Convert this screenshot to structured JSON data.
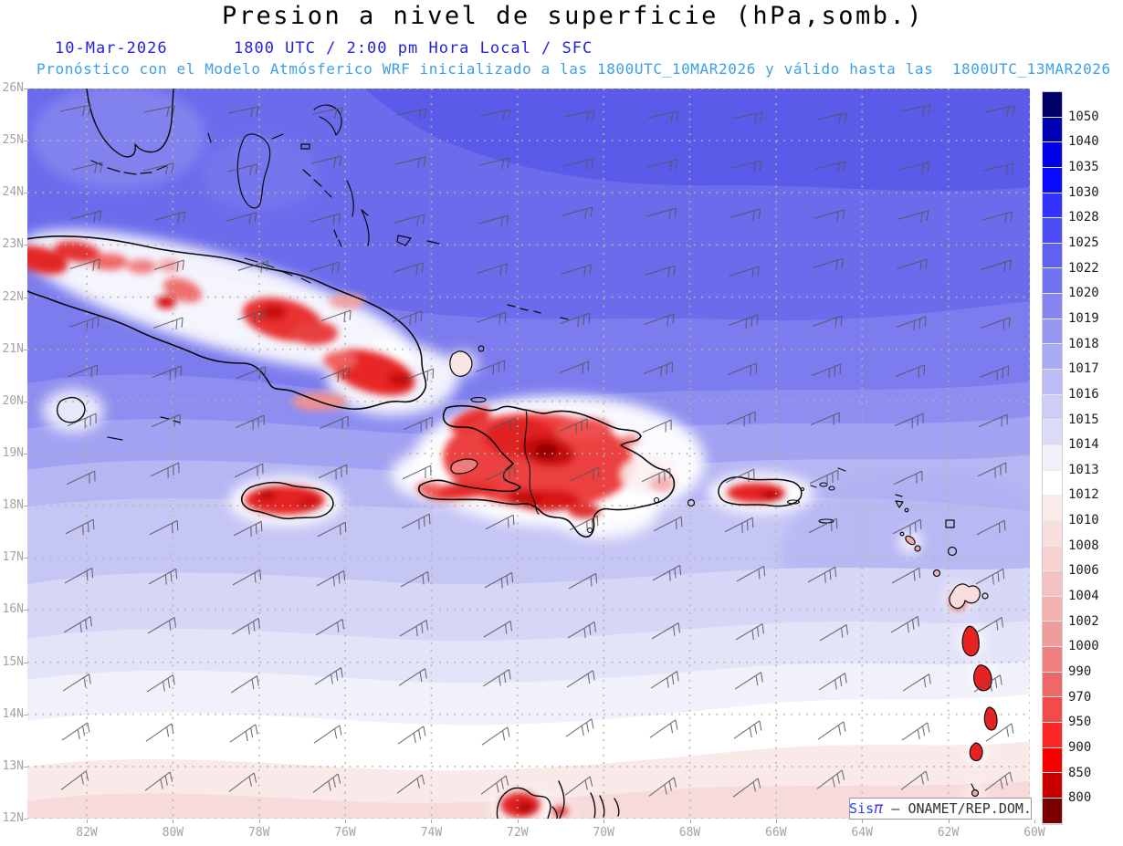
{
  "header": {
    "title": "Presion a nivel de superficie (hPa,somb.)",
    "date": "10-Mar-2026",
    "time_line": "1800 UTC / 2:00 pm Hora Local / SFC",
    "forecast_line": "Pronóstico con el Modelo Atmósferico WRF inicializado a las 1800UTC_10MAR2026 y válido hasta las  1800UTC_13MAR2026"
  },
  "watermark": {
    "prefix": "Sis",
    "pi": "π",
    "suffix": " – ONAMET/REP.DOM."
  },
  "chart_data": {
    "type": "heatmap",
    "title": "Presion a nivel de superficie (hPa,somb.)",
    "valid_time": "1800 UTC / 2:00 pm Hora Local / SFC",
    "model": "WRF",
    "init": "1800UTC_10MAR2026",
    "valid_until": "1800UTC_13MAR2026",
    "xlabel_ticks": [
      "82W",
      "80W",
      "78W",
      "76W",
      "74W",
      "72W",
      "70W",
      "68W",
      "66W",
      "64W",
      "62W",
      "60W"
    ],
    "ylabel_ticks": [
      "26N",
      "25N",
      "24N",
      "23N",
      "22N",
      "21N",
      "20N",
      "19N",
      "18N",
      "17N",
      "16N",
      "15N",
      "14N",
      "13N",
      "12N"
    ],
    "xlim": [
      "83.4W",
      "60W"
    ],
    "ylim": [
      "12N",
      "26N"
    ],
    "grid": true,
    "legend_position": "right",
    "colorbar_unit": "hPa",
    "colorbar_levels": [
      "1050",
      "1040",
      "1035",
      "1030",
      "1028",
      "1025",
      "1022",
      "1020",
      "1019",
      "1018",
      "1017",
      "1016",
      "1015",
      "1014",
      "1013",
      "1012",
      "1010",
      "1008",
      "1006",
      "1004",
      "1002",
      "1000",
      "990",
      "970",
      "950",
      "900",
      "850",
      "800"
    ],
    "colorbar_colors": [
      "#000066",
      "#0000B4",
      "#0000E6",
      "#0A0AFF",
      "#3333FF",
      "#4D4DF5",
      "#6161F0",
      "#7373EF",
      "#8585F0",
      "#9797F2",
      "#A9A9F4",
      "#BBBBF6",
      "#CDCDF8",
      "#DBDBF8",
      "#F1F1FC",
      "#FFFFFF",
      "#FBEAEA",
      "#F9DEDE",
      "#F7D0D0",
      "#F5C2C2",
      "#F2B0B0",
      "#EF9C9C",
      "#EE8282",
      "#EF6868",
      "#F34A4A",
      "#FB2626",
      "#F60000",
      "#C80000",
      "#7A0000"
    ],
    "field_summary": "Surface pressure ~1020-1025 hPa (blue) over the Atlantic north of the Greater Antilles, decreasing southward to ~1012-1014 hPa (white/pale pink) near 12N; terrain-reduced low values (red, <1000 hPa) over Cuba, Jamaica, Hispaniola, Puerto Rico, the Lesser Antilles and northern South America; easterly trade-wind barbs across the domain"
  },
  "map_style": {
    "axis_label_color": "#A3A3A3",
    "grid_dot_color": "#B5B5A2",
    "wind_barb_color": "#55555E",
    "coastline_color": "#0A0A0A",
    "date_color": "#2323DC",
    "forecast_color": "#3BA0E8"
  }
}
